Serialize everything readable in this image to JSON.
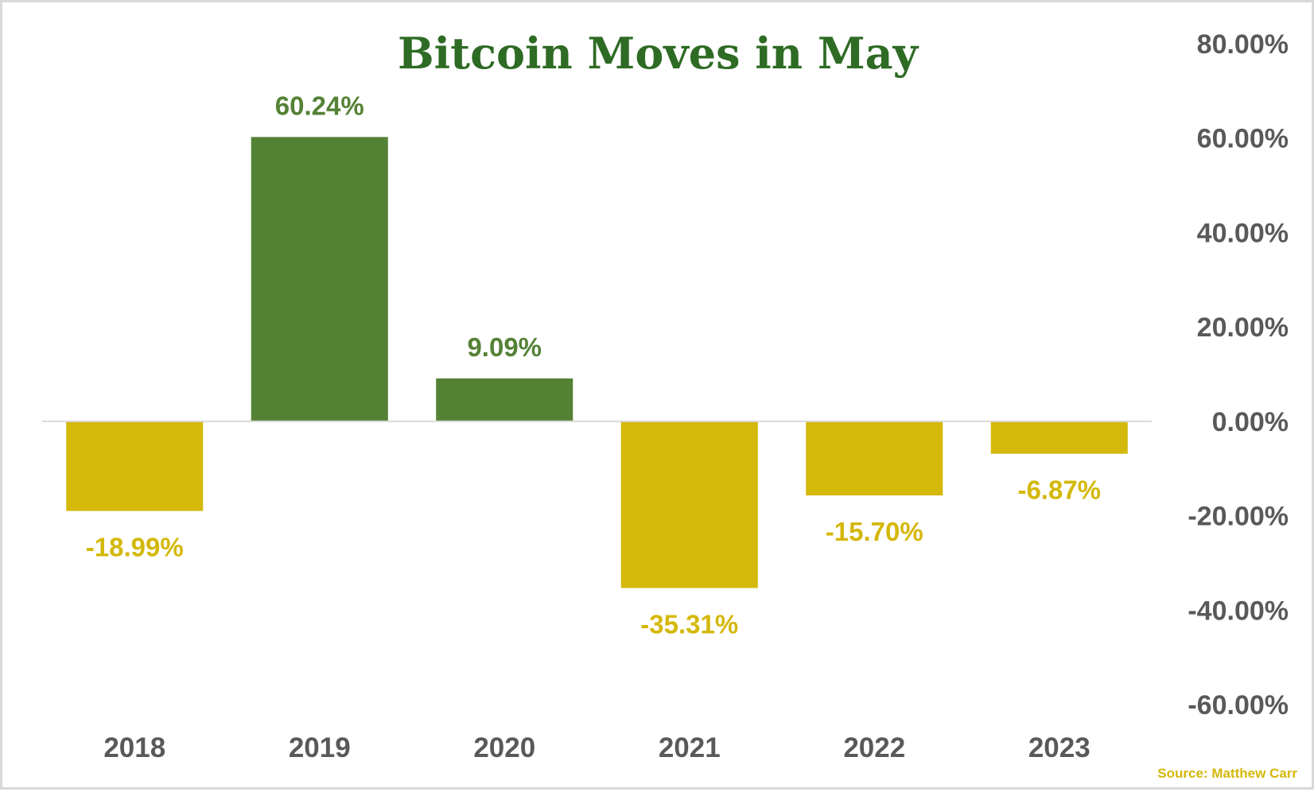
{
  "chart_data": {
    "type": "bar",
    "title": "Bitcoin Moves in May",
    "categories": [
      "2018",
      "2019",
      "2020",
      "2021",
      "2022",
      "2023"
    ],
    "values": [
      -18.99,
      60.24,
      9.09,
      -35.31,
      -15.7,
      -6.87
    ],
    "data_labels": [
      "-18.99%",
      "60.24%",
      "9.09%",
      "-35.31%",
      "-15.70%",
      "-6.87%"
    ],
    "ylim": [
      -60,
      80
    ],
    "yticks": [
      80,
      60,
      40,
      20,
      0,
      -20,
      -40,
      -60
    ],
    "ytick_labels": [
      "80.00%",
      "60.00%",
      "40.00%",
      "20.00%",
      "0.00%",
      "-20.00%",
      "-40.00%",
      "-60.00%"
    ],
    "y_axis_position": "right",
    "grid": false,
    "legend": "none",
    "xlabel": "",
    "ylabel": ""
  },
  "colors": {
    "positive": "#548235",
    "negative": "#d4b80a",
    "title": "#2e6b24",
    "axis_text": "#595959",
    "zero_line": "#d9d9d9"
  },
  "source": "Source: Matthew Carr"
}
